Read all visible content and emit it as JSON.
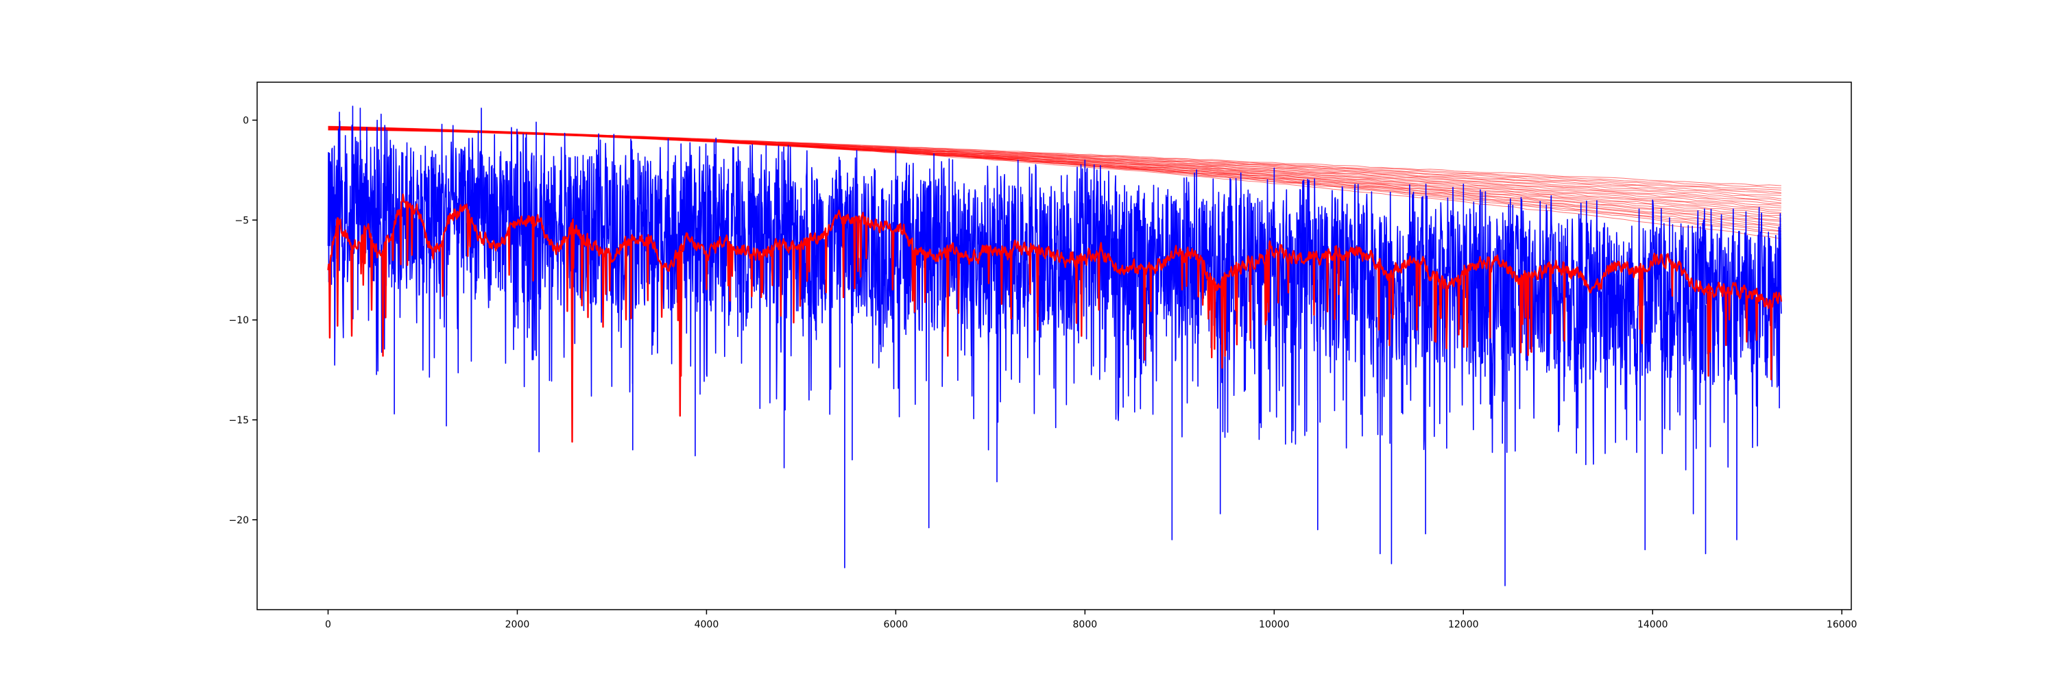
{
  "chart_data": {
    "type": "line",
    "title": "",
    "xlabel": "",
    "ylabel": "",
    "xlim": [
      -750,
      16100
    ],
    "ylim": [
      -24.5,
      1.9
    ],
    "x_ticks": [
      0,
      2000,
      4000,
      6000,
      8000,
      10000,
      12000,
      14000,
      16000
    ],
    "y_ticks": [
      0,
      -5,
      -10,
      -15,
      -20
    ],
    "x_tick_labels": [
      "0",
      "2000",
      "4000",
      "6000",
      "8000",
      "10000",
      "12000",
      "14000",
      "16000"
    ],
    "y_tick_labels": [
      "0",
      "−5",
      "−10",
      "−15",
      "−20"
    ],
    "grid": false,
    "legend": "none",
    "n_points": 15360,
    "series": [
      {
        "role": "noisy signal",
        "color": "#0000ff",
        "x_range": [
          0,
          15360
        ],
        "typical_band_start": [
          -8.5,
          -1.0
        ],
        "typical_band_end": [
          -13.5,
          -5.5
        ],
        "peaks": [
          [
            120,
            0.4
          ],
          [
            260,
            0.7
          ],
          [
            340,
            0.6
          ],
          [
            560,
            0.3
          ],
          [
            1620,
            0.6
          ],
          [
            2200,
            -0.1
          ],
          [
            4100,
            -0.9
          ],
          [
            6000,
            -1.5
          ],
          [
            8000,
            -2.0
          ],
          [
            10000,
            -2.4
          ],
          [
            12000,
            -3.2
          ],
          [
            14000,
            -4.0
          ]
        ],
        "deep_dips": [
          [
            700,
            -14.7
          ],
          [
            1250,
            -15.3
          ],
          [
            2230,
            -16.6
          ],
          [
            3220,
            -16.5
          ],
          [
            3880,
            -16.8
          ],
          [
            4820,
            -17.4
          ],
          [
            5460,
            -22.4
          ],
          [
            5540,
            -17.0
          ],
          [
            6350,
            -20.4
          ],
          [
            6980,
            -16.5
          ],
          [
            7070,
            -18.1
          ],
          [
            8920,
            -21.0
          ],
          [
            9430,
            -19.7
          ],
          [
            10460,
            -20.5
          ],
          [
            11120,
            -21.7
          ],
          [
            11240,
            -22.2
          ],
          [
            11600,
            -20.7
          ],
          [
            12440,
            -23.3
          ],
          [
            13920,
            -21.5
          ],
          [
            14430,
            -19.7
          ],
          [
            14560,
            -21.7
          ],
          [
            14890,
            -21.0
          ],
          [
            15340,
            -14.4
          ]
        ]
      },
      {
        "role": "smoothed envelope",
        "color": "#ff0000",
        "x_range": [
          0,
          15360
        ],
        "points": [
          [
            0,
            -7.5
          ],
          [
            100,
            -5.0
          ],
          [
            250,
            -6.5
          ],
          [
            400,
            -5.3
          ],
          [
            550,
            -7.0
          ],
          [
            700,
            -5.1
          ],
          [
            800,
            -3.9
          ],
          [
            950,
            -4.6
          ],
          [
            1100,
            -6.8
          ],
          [
            1300,
            -5.0
          ],
          [
            1450,
            -4.3
          ],
          [
            1600,
            -5.8
          ],
          [
            1800,
            -6.3
          ],
          [
            2000,
            -5.0
          ],
          [
            2200,
            -4.9
          ],
          [
            2400,
            -6.5
          ],
          [
            2600,
            -5.3
          ],
          [
            2800,
            -6.2
          ],
          [
            3000,
            -6.8
          ],
          [
            3200,
            -6.0
          ],
          [
            3400,
            -5.9
          ],
          [
            3600,
            -7.5
          ],
          [
            3800,
            -6.0
          ],
          [
            4000,
            -6.7
          ],
          [
            4200,
            -5.9
          ],
          [
            4400,
            -6.5
          ],
          [
            4600,
            -6.8
          ],
          [
            4800,
            -6.2
          ],
          [
            5000,
            -6.2
          ],
          [
            5200,
            -5.8
          ],
          [
            5400,
            -5.0
          ],
          [
            5600,
            -4.9
          ],
          [
            5800,
            -5.2
          ],
          [
            6000,
            -5.3
          ],
          [
            6100,
            -5.5
          ],
          [
            6200,
            -6.5
          ],
          [
            6400,
            -6.9
          ],
          [
            6600,
            -6.4
          ],
          [
            6800,
            -7.0
          ],
          [
            7000,
            -6.5
          ],
          [
            7200,
            -6.6
          ],
          [
            7400,
            -6.4
          ],
          [
            7600,
            -6.6
          ],
          [
            7800,
            -7.0
          ],
          [
            8000,
            -6.8
          ],
          [
            8200,
            -6.6
          ],
          [
            8400,
            -7.5
          ],
          [
            8600,
            -7.4
          ],
          [
            8800,
            -7.2
          ],
          [
            9000,
            -6.6
          ],
          [
            9200,
            -7.0
          ],
          [
            9400,
            -8.4
          ],
          [
            9600,
            -7.3
          ],
          [
            9800,
            -7.0
          ],
          [
            10000,
            -6.4
          ],
          [
            10200,
            -7.0
          ],
          [
            10400,
            -6.9
          ],
          [
            10600,
            -6.6
          ],
          [
            10800,
            -6.6
          ],
          [
            11000,
            -6.7
          ],
          [
            11200,
            -7.8
          ],
          [
            11400,
            -7.1
          ],
          [
            11600,
            -7.3
          ],
          [
            11800,
            -8.2
          ],
          [
            12000,
            -7.7
          ],
          [
            12200,
            -7.1
          ],
          [
            12400,
            -7.2
          ],
          [
            12600,
            -7.9
          ],
          [
            12800,
            -7.8
          ],
          [
            13000,
            -7.3
          ],
          [
            13200,
            -7.6
          ],
          [
            13400,
            -8.4
          ],
          [
            13600,
            -7.2
          ],
          [
            13800,
            -7.6
          ],
          [
            14000,
            -7.0
          ],
          [
            14200,
            -6.9
          ],
          [
            14400,
            -7.9
          ],
          [
            14600,
            -8.6
          ],
          [
            14800,
            -8.4
          ],
          [
            15000,
            -8.7
          ],
          [
            15200,
            -9.0
          ],
          [
            15360,
            -9.0
          ]
        ],
        "spikes": [
          [
            100,
            -10.3
          ],
          [
            250,
            -10.8
          ],
          [
            460,
            -9.5
          ],
          [
            580,
            -11.8
          ],
          [
            2580,
            -16.1
          ],
          [
            3720,
            -14.8
          ],
          [
            3730,
            -12.8
          ],
          [
            4990,
            -9.3
          ],
          [
            6200,
            -9.6
          ],
          [
            6550,
            -11.8
          ],
          [
            7500,
            -10.5
          ],
          [
            8630,
            -12.0
          ],
          [
            9450,
            -12.4
          ],
          [
            9480,
            -11.8
          ],
          [
            11700,
            -11.0
          ],
          [
            14590,
            -12.8
          ],
          [
            14610,
            -11.6
          ],
          [
            15100,
            -11.0
          ]
        ]
      },
      {
        "role": "upper fan bundle",
        "color": "#ff0000",
        "x_range": [
          0,
          15360
        ],
        "count": 26,
        "start_values": [
          -0.3,
          -0.5
        ],
        "end_values": [
          -3.3,
          -3.4,
          -3.5,
          -3.6,
          -3.7,
          -3.8,
          -3.9,
          -4.0,
          -4.1,
          -4.2,
          -4.3,
          -4.4,
          -4.5,
          -4.6,
          -4.7,
          -4.8,
          -4.9,
          -5.0,
          -5.1,
          -5.2,
          -5.3,
          -5.4,
          -5.5,
          -5.6,
          -5.7,
          -5.9
        ]
      }
    ]
  }
}
